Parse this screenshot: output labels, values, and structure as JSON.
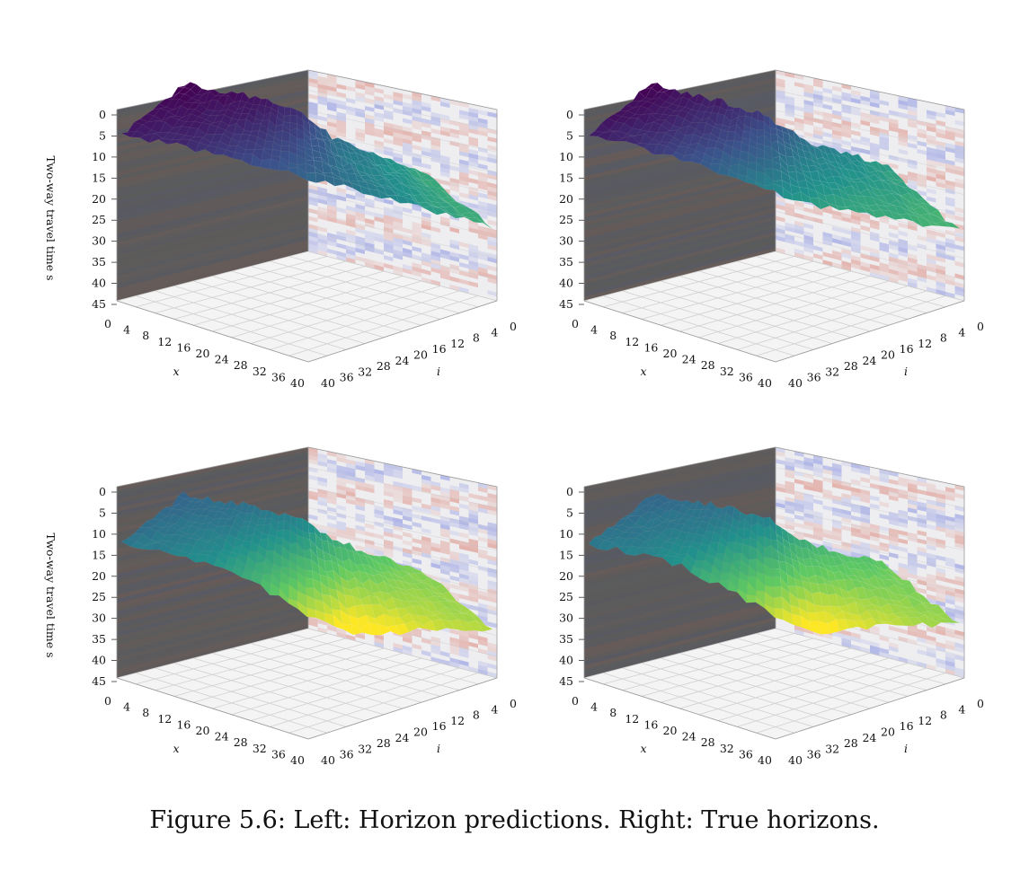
{
  "caption": "Figure 5.6: Left: Horizon predictions. Right: True horizons.",
  "colors": {
    "surface_colormap": "viridis",
    "seismic_positive": "#d6604d",
    "seismic_negative": "#4b5bd6",
    "pane_left_shade": "#3a3a3a"
  },
  "chart_data": [
    {
      "type": "surface3d",
      "panel": "top-left",
      "zlabel": "Two-way travel time s",
      "xlabel": "x",
      "ylabel": "i",
      "zticks": [
        "0",
        "5",
        "10",
        "15",
        "20",
        "25",
        "30",
        "35",
        "40",
        "45"
      ],
      "xticks": [
        "0",
        "4",
        "8",
        "12",
        "16",
        "20",
        "24",
        "28",
        "32",
        "36",
        "40"
      ],
      "iticks": [
        "40",
        "36",
        "32",
        "28",
        "24",
        "20",
        "16",
        "12",
        "8",
        "4",
        "0"
      ],
      "zlim": [
        45,
        0
      ],
      "horizon_profile": {
        "x": [
          0,
          5,
          10,
          15,
          20,
          25,
          30,
          35,
          40
        ],
        "t_near": [
          5,
          6,
          7.5,
          9,
          11,
          13,
          15,
          17,
          19
        ],
        "t_far": [
          3,
          3.5,
          4,
          5,
          7,
          12,
          14,
          16,
          18
        ]
      }
    },
    {
      "type": "surface3d",
      "panel": "top-right",
      "xlabel": "x",
      "ylabel": "i",
      "zticks": [
        "0",
        "5",
        "10",
        "15",
        "20",
        "25",
        "30",
        "35",
        "40",
        "45"
      ],
      "xticks": [
        "0",
        "4",
        "8",
        "12",
        "16",
        "20",
        "24",
        "28",
        "32",
        "36",
        "40"
      ],
      "iticks": [
        "40",
        "36",
        "32",
        "28",
        "24",
        "20",
        "16",
        "12",
        "8",
        "4",
        "0"
      ],
      "zlim": [
        45,
        0
      ],
      "horizon_profile": {
        "x": [
          0,
          5,
          10,
          15,
          20,
          25,
          30,
          35,
          40
        ],
        "t_near": [
          5,
          6.5,
          9,
          12,
          15,
          17,
          18,
          19,
          20
        ],
        "t_far": [
          3,
          4,
          5,
          6,
          8,
          12,
          14,
          15,
          17
        ]
      }
    },
    {
      "type": "surface3d",
      "panel": "bottom-left",
      "zlabel": "Two-way travel time s",
      "xlabel": "x",
      "ylabel": "i",
      "zticks": [
        "0",
        "5",
        "10",
        "15",
        "20",
        "25",
        "30",
        "35",
        "40",
        "45"
      ],
      "xticks": [
        "0",
        "4",
        "8",
        "12",
        "16",
        "20",
        "24",
        "28",
        "32",
        "36",
        "40"
      ],
      "iticks": [
        "40",
        "36",
        "32",
        "28",
        "24",
        "20",
        "16",
        "12",
        "8",
        "4",
        "0"
      ],
      "zlim": [
        45,
        0
      ],
      "horizon_profile": {
        "x": [
          0,
          5,
          10,
          15,
          20,
          25,
          30,
          35,
          40
        ],
        "t_near": [
          13,
          14,
          16,
          20,
          26,
          30,
          28,
          26,
          25
        ],
        "t_far": [
          11,
          12,
          12,
          13,
          14,
          18,
          20,
          22,
          23
        ]
      }
    },
    {
      "type": "surface3d",
      "panel": "bottom-right",
      "xlabel": "x",
      "ylabel": "i",
      "zticks": [
        "0",
        "5",
        "10",
        "15",
        "20",
        "25",
        "30",
        "35",
        "40",
        "45"
      ],
      "xticks": [
        "0",
        "4",
        "8",
        "12",
        "16",
        "20",
        "24",
        "28",
        "32",
        "36",
        "40"
      ],
      "iticks": [
        "40",
        "36",
        "32",
        "28",
        "24",
        "20",
        "16",
        "12",
        "8",
        "4",
        "0"
      ],
      "zlim": [
        45,
        0
      ],
      "horizon_profile": {
        "x": [
          0,
          5,
          10,
          15,
          20,
          25,
          30,
          35,
          40
        ],
        "t_near": [
          13,
          14,
          16,
          21,
          26,
          29,
          27,
          25,
          24
        ],
        "t_far": [
          11,
          12,
          12,
          13,
          14,
          18,
          20,
          21,
          22
        ]
      }
    }
  ]
}
